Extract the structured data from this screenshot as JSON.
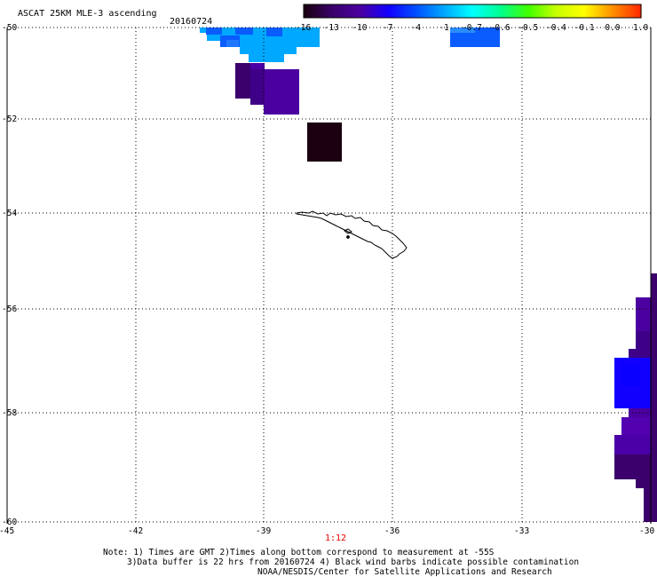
{
  "header": {
    "title": "ASCAT 25KM MLE-3 ascending",
    "date": "20160724"
  },
  "colorbar": {
    "tick_labels": [
      "-16",
      "-13",
      "-10",
      "-7",
      "-4",
      "-1",
      "-0.7",
      "-0.6",
      "-0.5",
      "-0.4",
      "-0.1",
      "0.0",
      "1.0"
    ],
    "colors": [
      "#1a0010",
      "#3b006b",
      "#4b00a0",
      "#1200ff",
      "#0050ff",
      "#00a8ff",
      "#00ffff",
      "#00ff90",
      "#40ff00",
      "#c8ff00",
      "#ffff00",
      "#ff9000",
      "#ff2a00"
    ]
  },
  "map": {
    "lat_labels": [
      "-50",
      "-52",
      "-54",
      "-56",
      "-58",
      "-60"
    ],
    "lon_labels": [
      "-45",
      "-42",
      "-39",
      "-36",
      "-33",
      "-30"
    ],
    "grid": true,
    "coastline": "South Georgia"
  },
  "time_label": "1:12",
  "notes": {
    "line1": "Note: 1) Times are GMT 2)Times along bottom correspond to measurement at -55S",
    "line2": "3)Data buffer is 22 hrs from 20160724 4) Black wind barbs indicate possible contamination",
    "line3": "NOAA/NESDIS/Center for Satellite Applications and Research"
  }
}
